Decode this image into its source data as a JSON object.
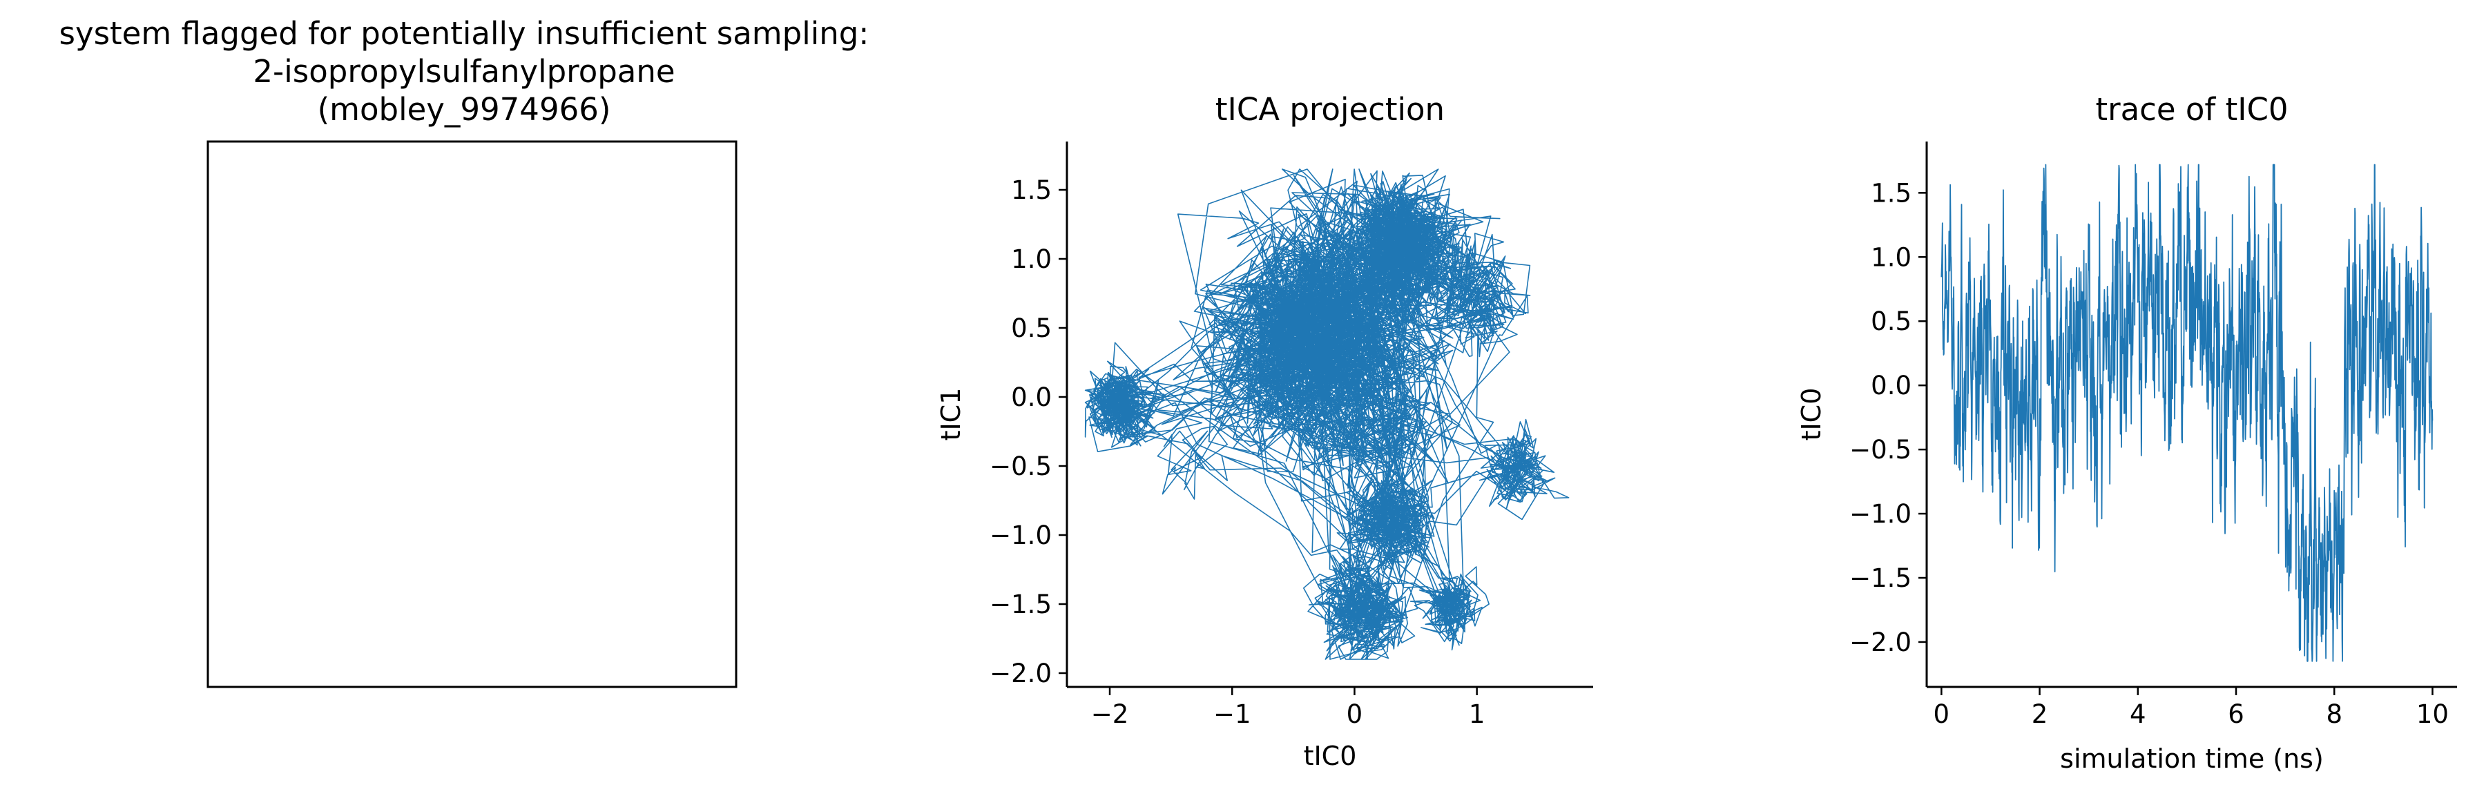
{
  "chart_data": [
    {
      "type": "image-panel",
      "title_lines": [
        "system flagged for potentially insufficient sampling:",
        "2-isopropylsulfanylpropane",
        "(mobley_9974966)"
      ]
    },
    {
      "type": "line",
      "title": "tICA projection",
      "xlabel": "tIC0",
      "ylabel": "tIC1",
      "xlim": [
        -2.35,
        1.95
      ],
      "ylim": [
        -2.1,
        1.85
      ],
      "xticks": [
        -2,
        -1,
        0,
        1
      ],
      "yticks": [
        -2.0,
        -1.5,
        -1.0,
        -0.5,
        0.0,
        0.5,
        1.0,
        1.5
      ],
      "xtick_labels": [
        "−2",
        "−1",
        "0",
        "1"
      ],
      "ytick_labels": [
        "−2.0",
        "−1.5",
        "−1.0",
        "−0.5",
        "0.0",
        "0.5",
        "1.0",
        "1.5"
      ],
      "color": "#1f77b4",
      "clusters": [
        {
          "x": -0.3,
          "y": 0.5,
          "spread": 0.55,
          "weight": 0.3
        },
        {
          "x": 0.4,
          "y": 1.1,
          "spread": 0.3,
          "weight": 0.14
        },
        {
          "x": 1.0,
          "y": 0.75,
          "spread": 0.25,
          "weight": 0.1
        },
        {
          "x": -1.95,
          "y": -0.05,
          "spread": 0.18,
          "weight": 0.06
        },
        {
          "x": -1.4,
          "y": -0.4,
          "spread": 0.22,
          "weight": 0.06
        },
        {
          "x": 1.35,
          "y": -0.55,
          "spread": 0.18,
          "weight": 0.07
        },
        {
          "x": 0.3,
          "y": -0.9,
          "spread": 0.22,
          "weight": 0.07
        },
        {
          "x": 0.05,
          "y": -1.55,
          "spread": 0.22,
          "weight": 0.1
        },
        {
          "x": 0.8,
          "y": -1.55,
          "spread": 0.15,
          "weight": 0.06
        },
        {
          "x": 0.2,
          "y": -0.2,
          "spread": 0.35,
          "weight": 0.04
        }
      ]
    },
    {
      "type": "line",
      "title": "trace of tIC0",
      "xlabel": "simulation time (ns)",
      "ylabel": "tIC0",
      "xlim": [
        -0.3,
        10.5
      ],
      "ylim": [
        -2.35,
        1.9
      ],
      "xticks": [
        0,
        2,
        4,
        6,
        8,
        10
      ],
      "yticks": [
        -2.0,
        -1.5,
        -1.0,
        -0.5,
        0.0,
        0.5,
        1.0,
        1.5
      ],
      "xtick_labels": [
        "0",
        "2",
        "4",
        "6",
        "8",
        "10"
      ],
      "ytick_labels": [
        "−2.0",
        "−1.5",
        "−1.0",
        "−0.5",
        "0.0",
        "0.5",
        "1.0",
        "1.5"
      ],
      "color": "#1f77b4",
      "segments": [
        {
          "t0": 0.0,
          "t1": 0.25,
          "mean": 0.9,
          "sd": 0.35
        },
        {
          "t0": 0.25,
          "t1": 1.0,
          "mean": 0.1,
          "sd": 0.45
        },
        {
          "t0": 1.0,
          "t1": 2.0,
          "mean": -0.1,
          "sd": 0.55
        },
        {
          "t0": 2.0,
          "t1": 3.5,
          "mean": 0.3,
          "sd": 0.55
        },
        {
          "t0": 3.5,
          "t1": 5.5,
          "mean": 0.6,
          "sd": 0.55
        },
        {
          "t0": 5.5,
          "t1": 7.0,
          "mean": 0.3,
          "sd": 0.6
        },
        {
          "t0": 7.0,
          "t1": 8.2,
          "mean": -1.2,
          "sd": 0.5
        },
        {
          "t0": 8.2,
          "t1": 10.0,
          "mean": 0.3,
          "sd": 0.6
        }
      ]
    }
  ]
}
